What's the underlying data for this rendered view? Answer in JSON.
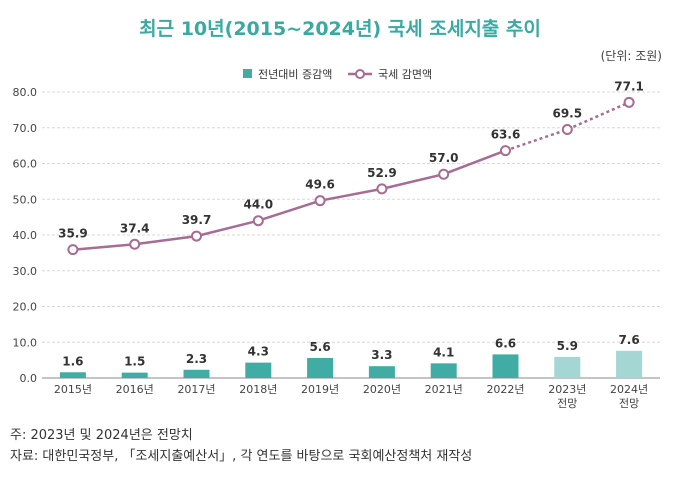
{
  "title": "최근 10년(2015~2024년) 국세 조세지출 추이",
  "unit": "(단위: 조원)",
  "notes": [
    "주: 2023년 및 2024년은 전망치",
    "자료: 대한민국정부, 「조세지출예산서」, 각 연도를 바탕으로 국회예산정책처 재작성"
  ],
  "colors": {
    "bar": "#41aca4",
    "bar_forecast": "#a4d7d3",
    "line": "#a56d94",
    "title": "#3aa9a1"
  },
  "chart_data": {
    "type": "bar+line",
    "categories": [
      "2015년",
      "2016년",
      "2017년",
      "2018년",
      "2019년",
      "2020년",
      "2021년",
      "2022년",
      "2023년\n전망",
      "2024년\n전망"
    ],
    "forecast_from_index": 8,
    "ylim": [
      0,
      80
    ],
    "yticks": [
      "0.0",
      "10.0",
      "20.0",
      "30.0",
      "40.0",
      "50.0",
      "60.0",
      "70.0",
      "80.0"
    ],
    "legend": [
      "전년대비 증감액",
      "국세 감면액"
    ],
    "legend_position": "top-center",
    "grid": true,
    "series": [
      {
        "name": "전년대비 증감액",
        "type": "bar",
        "values": [
          1.6,
          1.5,
          2.3,
          4.3,
          5.6,
          3.3,
          4.1,
          6.6,
          5.9,
          7.6
        ],
        "labels": [
          "1.6",
          "1.5",
          "2.3",
          "4.3",
          "5.6",
          "3.3",
          "4.1",
          "6.6",
          "5.9",
          "7.6"
        ]
      },
      {
        "name": "국세 감면액",
        "type": "line",
        "values": [
          35.9,
          37.4,
          39.7,
          44.0,
          49.6,
          52.9,
          57.0,
          63.6,
          69.5,
          77.1
        ],
        "labels": [
          "35.9",
          "37.4",
          "39.7",
          "44.0",
          "49.6",
          "52.9",
          "57.0",
          "63.6",
          "69.5",
          "77.1"
        ]
      }
    ]
  }
}
